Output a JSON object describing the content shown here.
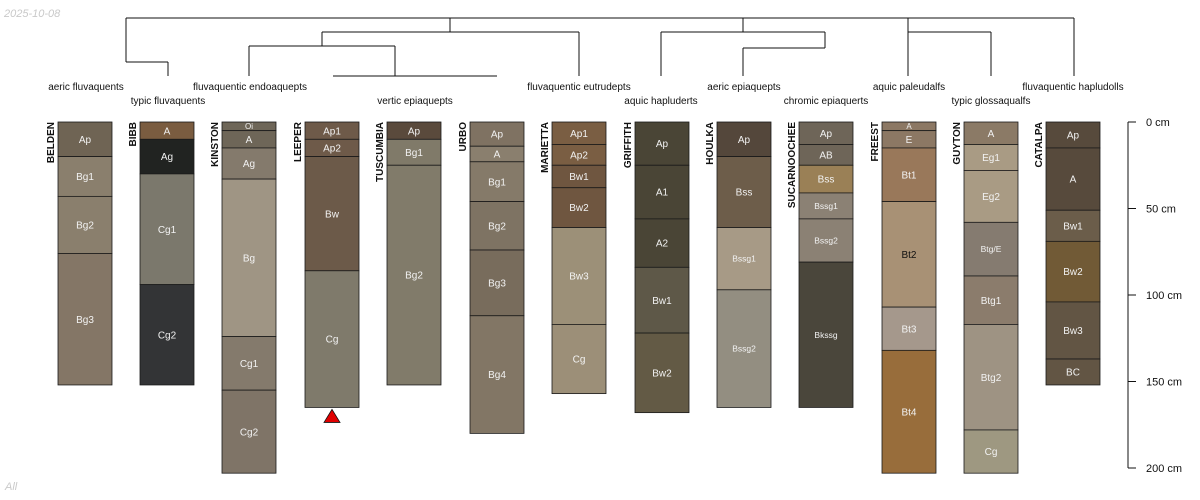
{
  "date_stamp": "2025-10-08",
  "footer_note": "All",
  "depth_axis": {
    "max_cm": 200,
    "ticks": [
      {
        "value": 0,
        "label": "0 cm"
      },
      {
        "value": 50,
        "label": "50 cm"
      },
      {
        "value": 100,
        "label": "100 cm"
      },
      {
        "value": 150,
        "label": "150 cm"
      },
      {
        "value": 200,
        "label": "200 cm"
      }
    ]
  },
  "taxa": [
    {
      "name": "aeric fluvaquents"
    },
    {
      "name": "typic fluvaquents"
    },
    {
      "name": "fluvaquentic endoaquepts"
    },
    {
      "name": "vertic epiaquepts"
    },
    {
      "name": "fluvaquentic eutrudepts"
    },
    {
      "name": "aquic hapluderts"
    },
    {
      "name": "aeric epiaquepts"
    },
    {
      "name": "chromic epiaquerts"
    },
    {
      "name": "aquic paleudalfs"
    },
    {
      "name": "typic glossaqualfs"
    },
    {
      "name": "fluvaquentic hapludolls"
    }
  ],
  "profiles": [
    {
      "name": "BELDEN",
      "horizons": [
        {
          "name": "Ap",
          "top": 0,
          "bottom": 20,
          "color": "#6f6454",
          "text": "light"
        },
        {
          "name": "Bg1",
          "top": 20,
          "bottom": 43,
          "color": "#8a7f6d",
          "text": "light"
        },
        {
          "name": "Bg2",
          "top": 43,
          "bottom": 76,
          "color": "#8a7f6d",
          "text": "light"
        },
        {
          "name": "Bg3",
          "top": 76,
          "bottom": 152,
          "color": "#847666",
          "text": "light"
        }
      ]
    },
    {
      "name": "BIBB",
      "horizons": [
        {
          "name": "A",
          "top": 0,
          "bottom": 10,
          "color": "#7a5c40",
          "text": "light"
        },
        {
          "name": "Ag",
          "top": 10,
          "bottom": 30,
          "color": "#212321",
          "text": "light"
        },
        {
          "name": "Cg1",
          "top": 30,
          "bottom": 94,
          "color": "#7b786c",
          "text": "light"
        },
        {
          "name": "Cg2",
          "top": 94,
          "bottom": 152,
          "color": "#333436",
          "text": "light"
        }
      ]
    },
    {
      "name": "KINSTON",
      "horizons": [
        {
          "name": "Oi",
          "top": 0,
          "bottom": 5,
          "color": "#6e6658",
          "text": "light"
        },
        {
          "name": "A",
          "top": 5,
          "bottom": 15,
          "color": "#6e6658",
          "text": "light"
        },
        {
          "name": "Ag",
          "top": 15,
          "bottom": 33,
          "color": "#847a6c",
          "text": "light"
        },
        {
          "name": "Bg",
          "top": 33,
          "bottom": 124,
          "color": "#9f9584",
          "text": "light"
        },
        {
          "name": "Cg1",
          "top": 124,
          "bottom": 155,
          "color": "#847a6c",
          "text": "light"
        },
        {
          "name": "Cg2",
          "top": 155,
          "bottom": 203,
          "color": "#7f7467",
          "text": "light"
        }
      ]
    },
    {
      "name": "LEEPER",
      "truncated": true,
      "horizons": [
        {
          "name": "Ap1",
          "top": 0,
          "bottom": 10,
          "color": "#6e5a49",
          "text": "light"
        },
        {
          "name": "Ap2",
          "top": 10,
          "bottom": 20,
          "color": "#6e5a49",
          "text": "light"
        },
        {
          "name": "Bw",
          "top": 20,
          "bottom": 86,
          "color": "#6c5a49",
          "text": "light"
        },
        {
          "name": "Cg",
          "top": 86,
          "bottom": 165,
          "color": "#7f7a6b",
          "text": "light"
        }
      ]
    },
    {
      "name": "TUSCUMBIA",
      "horizons": [
        {
          "name": "Ap",
          "top": 0,
          "bottom": 10,
          "color": "#5a4a3c",
          "text": "light"
        },
        {
          "name": "Bg1",
          "top": 10,
          "bottom": 25,
          "color": "#807a69",
          "text": "light"
        },
        {
          "name": "Bg2",
          "top": 25,
          "bottom": 152,
          "color": "#817b6a",
          "text": "light"
        }
      ]
    },
    {
      "name": "URBO",
      "horizons": [
        {
          "name": "Ap",
          "top": 0,
          "bottom": 14,
          "color": "#7f7262",
          "text": "light"
        },
        {
          "name": "A",
          "top": 14,
          "bottom": 23,
          "color": "#8a7f6e",
          "text": "light"
        },
        {
          "name": "Bg1",
          "top": 23,
          "bottom": 46,
          "color": "#857a69",
          "text": "light"
        },
        {
          "name": "Bg2",
          "top": 46,
          "bottom": 74,
          "color": "#7e7363",
          "text": "light"
        },
        {
          "name": "Bg3",
          "top": 74,
          "bottom": 112,
          "color": "#786c5c",
          "text": "light"
        },
        {
          "name": "Bg4",
          "top": 112,
          "bottom": 180,
          "color": "#827665",
          "text": "light"
        }
      ]
    },
    {
      "name": "MARIETTA",
      "horizons": [
        {
          "name": "Ap1",
          "top": 0,
          "bottom": 13,
          "color": "#7a5e43",
          "text": "light"
        },
        {
          "name": "Ap2",
          "top": 13,
          "bottom": 25,
          "color": "#7a5e43",
          "text": "light"
        },
        {
          "name": "Bw1",
          "top": 25,
          "bottom": 38,
          "color": "#6f5640",
          "text": "light"
        },
        {
          "name": "Bw2",
          "top": 38,
          "bottom": 61,
          "color": "#6f5640",
          "text": "light"
        },
        {
          "name": "Bw3",
          "top": 61,
          "bottom": 117,
          "color": "#9c9078",
          "text": "light"
        },
        {
          "name": "Cg",
          "top": 117,
          "bottom": 157,
          "color": "#9c8f78",
          "text": "light"
        }
      ]
    },
    {
      "name": "GRIFFITH",
      "horizons": [
        {
          "name": "Ap",
          "top": 0,
          "bottom": 25,
          "color": "#4a4536",
          "text": "light"
        },
        {
          "name": "A1",
          "top": 25,
          "bottom": 56,
          "color": "#4a4536",
          "text": "light"
        },
        {
          "name": "A2",
          "top": 56,
          "bottom": 84,
          "color": "#4a4536",
          "text": "light"
        },
        {
          "name": "Bw1",
          "top": 84,
          "bottom": 122,
          "color": "#5e5848",
          "text": "light"
        },
        {
          "name": "Bw2",
          "top": 122,
          "bottom": 168,
          "color": "#635a45",
          "text": "light"
        }
      ]
    },
    {
      "name": "HOULKA",
      "horizons": [
        {
          "name": "Ap",
          "top": 0,
          "bottom": 20,
          "color": "#54473b",
          "text": "light"
        },
        {
          "name": "Bss",
          "top": 20,
          "bottom": 61,
          "color": "#6d5d4a",
          "text": "light"
        },
        {
          "name": "Bssg1",
          "top": 61,
          "bottom": 97,
          "color": "#a79a86",
          "text": "light"
        },
        {
          "name": "Bssg2",
          "top": 97,
          "bottom": 165,
          "color": "#938e81",
          "text": "light"
        }
      ]
    },
    {
      "name": "SUCARNOOCHEE",
      "horizons": [
        {
          "name": "Ap",
          "top": 0,
          "bottom": 13,
          "color": "#6e6558",
          "text": "light"
        },
        {
          "name": "AB",
          "top": 13,
          "bottom": 25,
          "color": "#6e6558",
          "text": "light"
        },
        {
          "name": "Bss",
          "top": 25,
          "bottom": 41,
          "color": "#9a8056",
          "text": "light"
        },
        {
          "name": "Bssg1",
          "top": 41,
          "bottom": 56,
          "color": "#8b8174",
          "text": "light"
        },
        {
          "name": "Bssg2",
          "top": 56,
          "bottom": 81,
          "color": "#8b8174",
          "text": "light"
        },
        {
          "name": "Bkssg",
          "top": 81,
          "bottom": 165,
          "color": "#4a463b",
          "text": "light"
        }
      ]
    },
    {
      "name": "FREEST",
      "horizons": [
        {
          "name": "A",
          "top": 0,
          "bottom": 5,
          "color": "#8c7864",
          "text": "light"
        },
        {
          "name": "E",
          "top": 5,
          "bottom": 15,
          "color": "#8c7864",
          "text": "light"
        },
        {
          "name": "Bt1",
          "top": 15,
          "bottom": 46,
          "color": "#99785a",
          "text": "light"
        },
        {
          "name": "Bt2",
          "top": 46,
          "bottom": 107,
          "color": "#a89175",
          "text": "dark"
        },
        {
          "name": "Bt3",
          "top": 107,
          "bottom": 132,
          "color": "#a5988c",
          "text": "light"
        },
        {
          "name": "Bt4",
          "top": 132,
          "bottom": 203,
          "color": "#986d3b",
          "text": "light"
        }
      ]
    },
    {
      "name": "GUYTON",
      "horizons": [
        {
          "name": "A",
          "top": 0,
          "bottom": 13,
          "color": "#8b7a66",
          "text": "light"
        },
        {
          "name": "Eg1",
          "top": 13,
          "bottom": 28,
          "color": "#a99b84",
          "text": "light"
        },
        {
          "name": "Eg2",
          "top": 28,
          "bottom": 58,
          "color": "#a99b84",
          "text": "light"
        },
        {
          "name": "Btg/E",
          "top": 58,
          "bottom": 89,
          "color": "#857b70",
          "text": "light"
        },
        {
          "name": "Btg1",
          "top": 89,
          "bottom": 117,
          "color": "#8b7c6c",
          "text": "light"
        },
        {
          "name": "Btg2",
          "top": 117,
          "bottom": 178,
          "color": "#9e9383",
          "text": "light"
        },
        {
          "name": "Cg",
          "top": 178,
          "bottom": 203,
          "color": "#9e9881",
          "text": "light"
        }
      ]
    },
    {
      "name": "CATALPA",
      "horizons": [
        {
          "name": "Ap",
          "top": 0,
          "bottom": 15,
          "color": "#574a3c",
          "text": "light"
        },
        {
          "name": "A",
          "top": 15,
          "bottom": 51,
          "color": "#574a3c",
          "text": "light"
        },
        {
          "name": "Bw1",
          "top": 51,
          "bottom": 69,
          "color": "#6b5d4a",
          "text": "light"
        },
        {
          "name": "Bw2",
          "top": 69,
          "bottom": 104,
          "color": "#715a36",
          "text": "light"
        },
        {
          "name": "Bw3",
          "top": 104,
          "bottom": 137,
          "color": "#625544",
          "text": "light"
        },
        {
          "name": "BC",
          "top": 137,
          "bottom": 152,
          "color": "#625544",
          "text": "light"
        }
      ]
    }
  ]
}
